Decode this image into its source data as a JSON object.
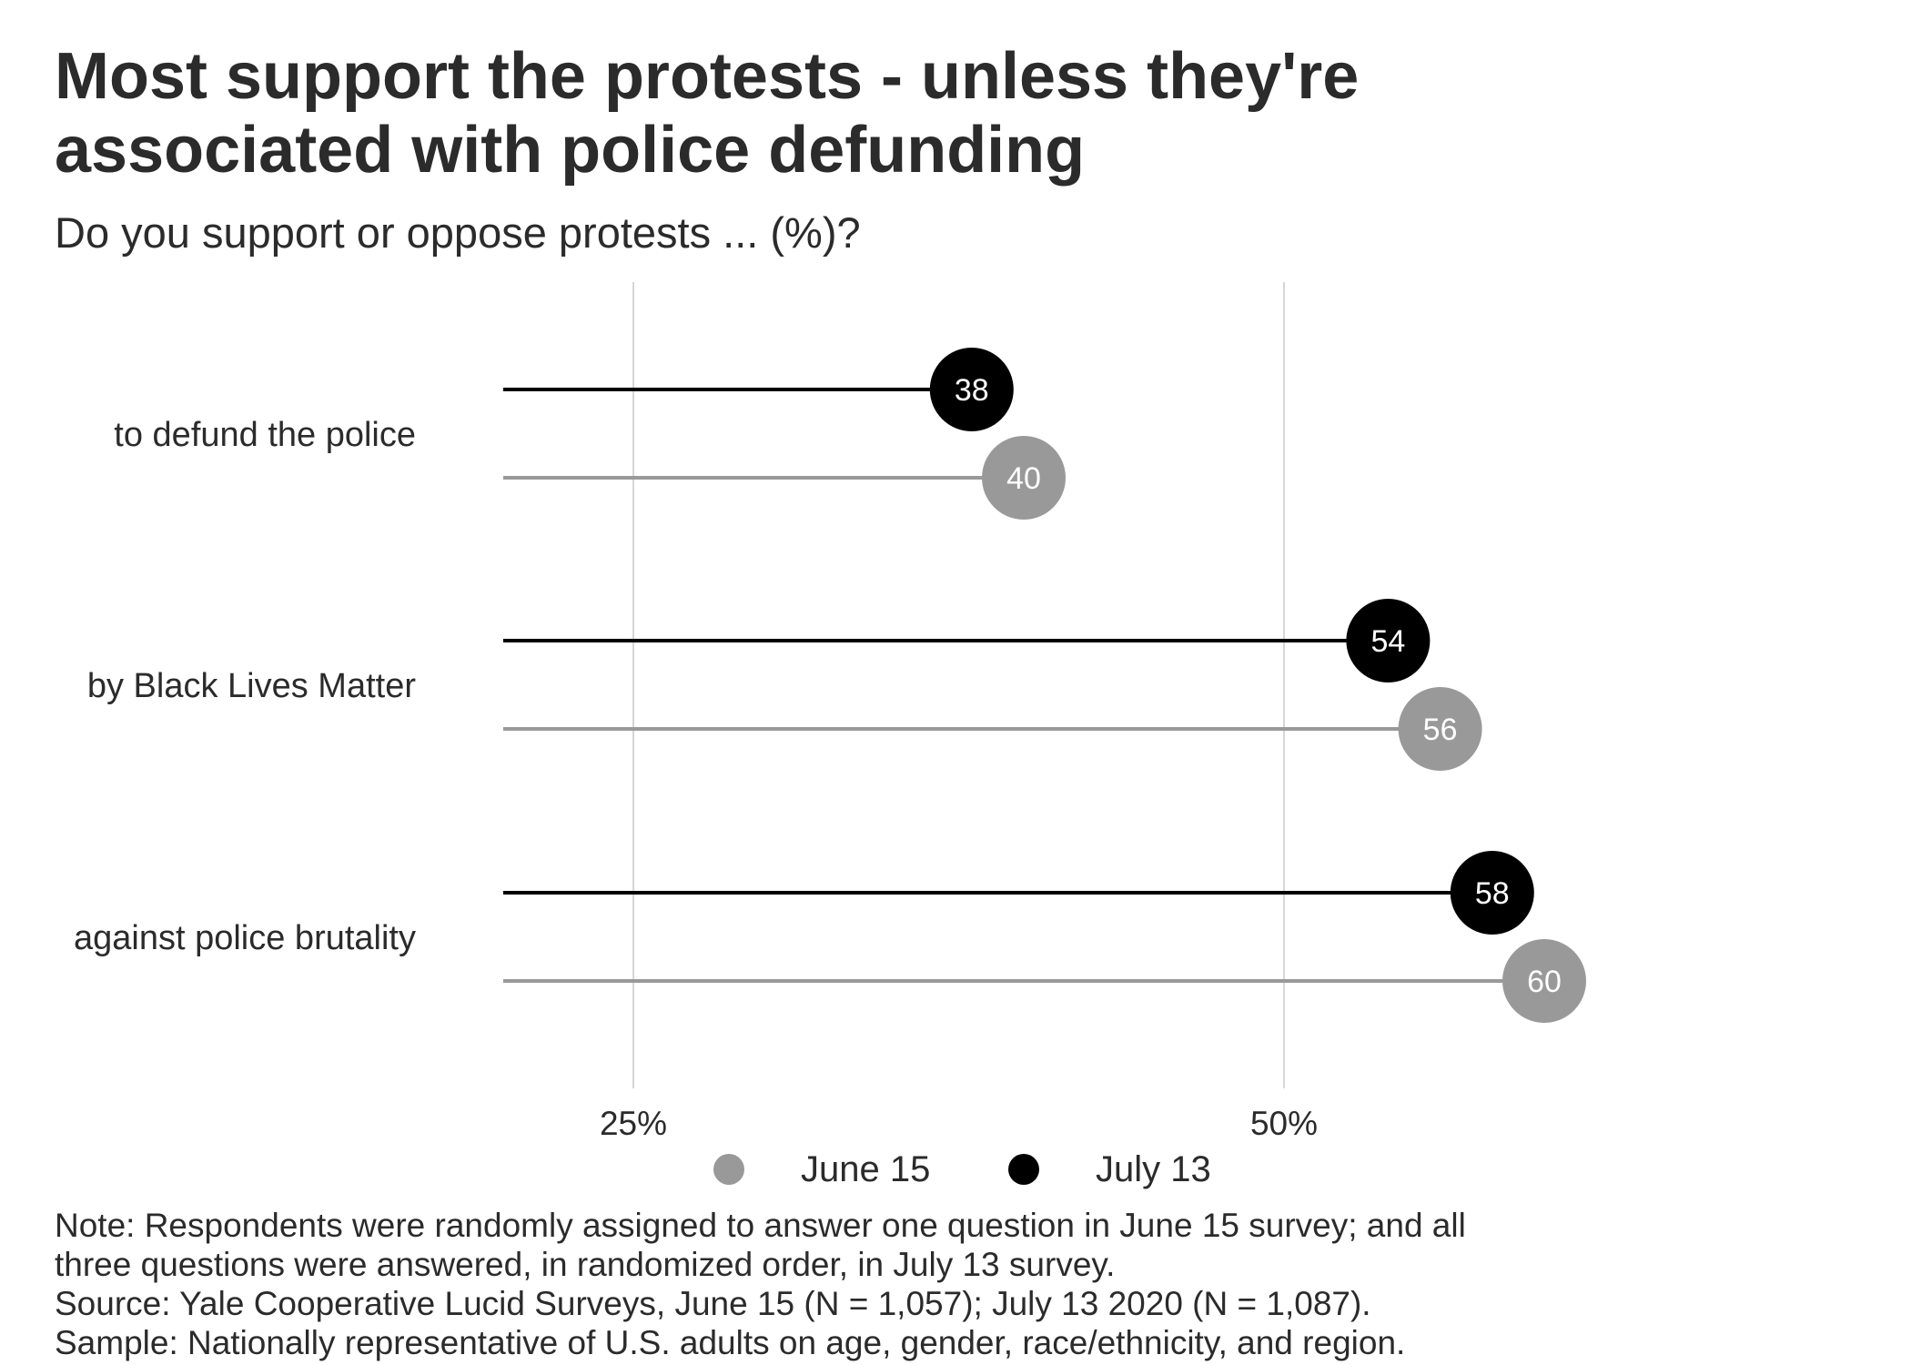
{
  "title_line1": "Most support the protests - unless they're",
  "title_line2": "associated with police defunding",
  "subtitle": "Do you support or oppose protests ... (%)?",
  "colors": {
    "june": "#999999",
    "july": "#000000",
    "grid": "#d6d6d6",
    "text": "#2b2b2b"
  },
  "legend": [
    {
      "label": "June 15",
      "color": "#999999"
    },
    {
      "label": "July 13",
      "color": "#000000"
    }
  ],
  "caption": {
    "note_line1": "Note: Respondents were randomly assigned to answer one question in June 15 survey; and all",
    "note_line2": "three questions were answered, in randomized order, in July 13 survey.",
    "source": "Source: Yale Cooperative Lucid Surveys, June 15 (N = 1,057); July 13 2020 (N = 1,087).",
    "sample": "Sample: Nationally representative of U.S. adults on age, gender, race/ethnicity, and region."
  },
  "chart_data": {
    "type": "lollipop",
    "categories": [
      "to defund the police",
      "by Black Lives Matter",
      "against police brutality"
    ],
    "series": [
      {
        "name": "July 13",
        "values": [
          38,
          54,
          58
        ],
        "color": "#000000"
      },
      {
        "name": "June 15",
        "values": [
          40,
          56,
          60
        ],
        "color": "#999999"
      }
    ],
    "x_ticks": [
      25,
      50
    ],
    "x_tick_labels": [
      "25%",
      "50%"
    ],
    "xlim": [
      20,
      75
    ],
    "grid": true,
    "legend_position": "bottom"
  }
}
